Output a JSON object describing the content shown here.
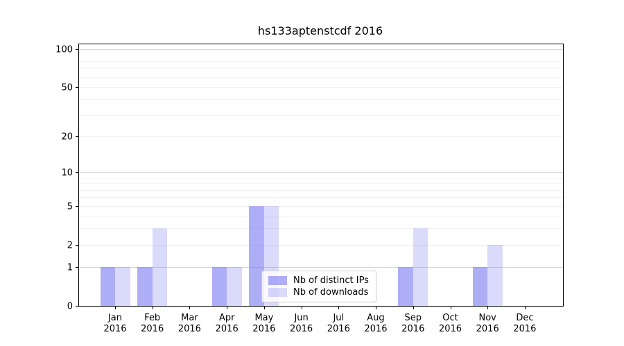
{
  "chart_data": {
    "type": "bar",
    "title": "hs133aptenstcdf 2016",
    "xlabel": "",
    "ylabel": "",
    "yscale": "log1p",
    "ylim": [
      0,
      110
    ],
    "yticks": [
      0,
      1,
      2,
      5,
      10,
      20,
      50,
      100
    ],
    "grid_minor": [
      2,
      3,
      4,
      5,
      6,
      7,
      8,
      9,
      20,
      30,
      40,
      50,
      60,
      70,
      80,
      90
    ],
    "grid_major": [
      1,
      10,
      100
    ],
    "grid_on": true,
    "legend_position": "lower-center",
    "categories": [
      "Jan 2016",
      "Feb 2016",
      "Mar 2016",
      "Apr 2016",
      "May 2016",
      "Jun 2016",
      "Jul 2016",
      "Aug 2016",
      "Sep 2016",
      "Oct 2016",
      "Nov 2016",
      "Dec 2016"
    ],
    "series": [
      {
        "name": "Nb of distinct IPs",
        "color": "rgba(100,100,240,0.52)",
        "color_hex_on_white": "#aeaef7",
        "values": [
          1,
          1,
          0,
          1,
          5,
          0,
          0,
          0,
          1,
          0,
          1,
          0
        ]
      },
      {
        "name": "Nb of downloads",
        "color": "rgba(100,100,240,0.24)",
        "color_hex_on_white": "#dadafb",
        "values": [
          1,
          3,
          0,
          1,
          5,
          0,
          0,
          0,
          3,
          0,
          2,
          0
        ]
      }
    ],
    "colors": {
      "gridline_minor": "#f0f0f0",
      "gridline_major": "#d8d8d8",
      "axis": "#000000",
      "legend_border": "#cccccc"
    }
  }
}
